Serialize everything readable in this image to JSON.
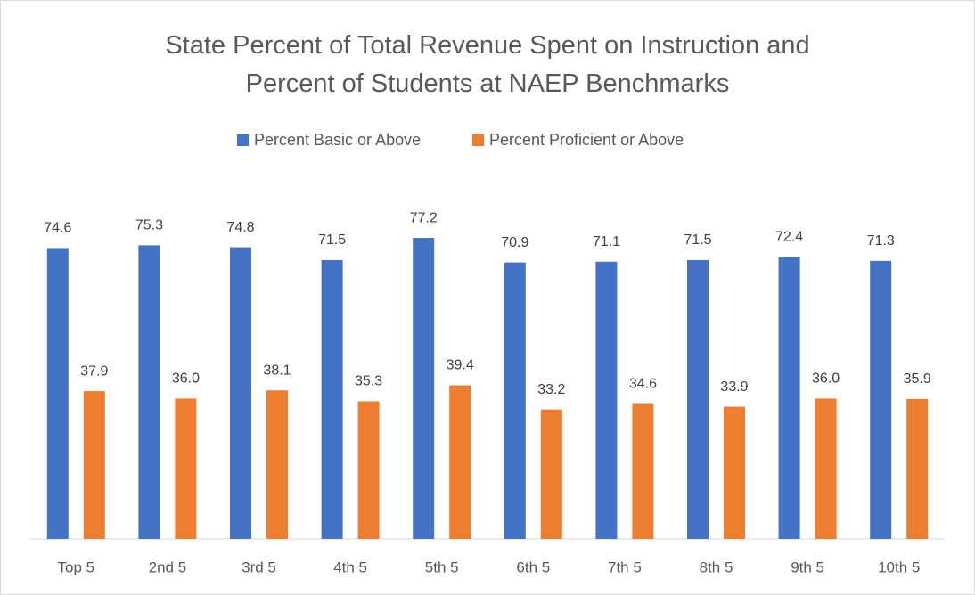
{
  "chart_data": {
    "type": "bar",
    "title": "State Percent of Total Revenue Spent on Instruction and Percent of Students at NAEP Benchmarks",
    "categories": [
      "Top 5",
      "2nd 5",
      "3rd 5",
      "4th 5",
      "5th 5",
      "6th 5",
      "7th 5",
      "8th 5",
      "9th 5",
      "10th 5"
    ],
    "series": [
      {
        "name": "Percent Basic or Above",
        "color": "#4472c4",
        "values": [
          74.6,
          75.3,
          74.8,
          71.5,
          77.2,
          70.9,
          71.1,
          71.5,
          72.4,
          71.3
        ]
      },
      {
        "name": "Percent Proficient or Above",
        "color": "#ed7d31",
        "values": [
          37.9,
          36,
          38.1,
          35.3,
          39.4,
          33.2,
          34.6,
          33.9,
          36,
          35.9
        ],
        "value_labels": [
          "37.9",
          "36.0",
          "38.1",
          "35.3",
          "39.4",
          "33.2",
          "34.6",
          "33.9",
          "36.0",
          "35.9"
        ]
      }
    ],
    "ylim": [
      0,
      90
    ],
    "legend": "top"
  }
}
